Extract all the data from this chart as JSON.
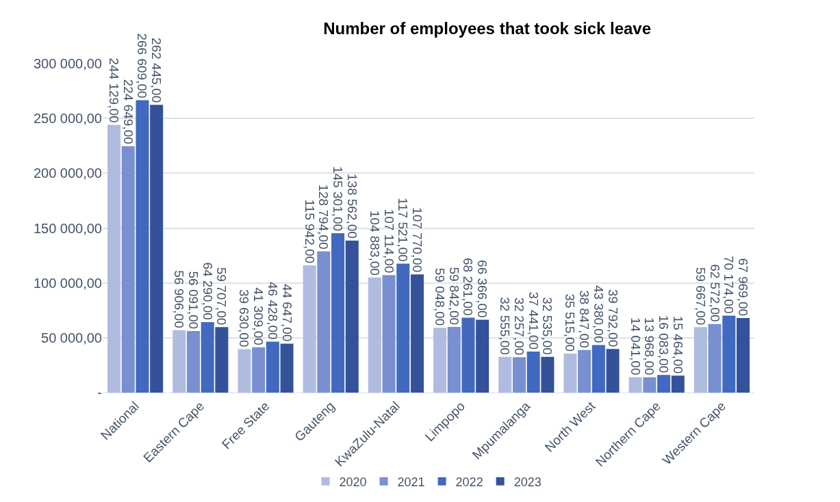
{
  "chart_data": {
    "type": "bar",
    "title": "Number of employees that took sick leave",
    "categories": [
      "National",
      "Eastern Cape",
      "Free State",
      "Gauteng",
      "KwaZulu-Natal",
      "Limpopo",
      "Mpumalanga",
      "North West",
      "Northern Cape",
      "Western Cape"
    ],
    "series": [
      {
        "name": "2020",
        "color": "#b0bbe0",
        "values": [
          244129,
          56906,
          39630,
          115942,
          104883,
          59048,
          32555,
          35515,
          14041,
          59667
        ],
        "value_labels": [
          "244 129,00",
          "56 906,00",
          "39 630,00",
          "115 942,00",
          "104 883,00",
          "59 048,00",
          "32 555,00",
          "35 515,00",
          "14 041,00",
          "59 667,00"
        ]
      },
      {
        "name": "2021",
        "color": "#7890d0",
        "values": [
          224649,
          56091,
          41309,
          128794,
          107114,
          59842,
          32257,
          38847,
          13968,
          62572
        ],
        "value_labels": [
          "224 649,00",
          "56 091,00",
          "41 309,00",
          "128 794,00",
          "107 114,00",
          "59 842,00",
          "32 257,00",
          "38 847,00",
          "13 968,00",
          "62 572,00"
        ]
      },
      {
        "name": "2022",
        "color": "#4169c0",
        "values": [
          266609,
          64290,
          46428,
          145301,
          117521,
          68261,
          37441,
          43380,
          16083,
          70174
        ],
        "value_labels": [
          "266 609,00",
          "64 290,00",
          "46 428,00",
          "145 301,00",
          "117 521,00",
          "68 261,00",
          "37 441,00",
          "43 380,00",
          "16 083,00",
          "70 174,00"
        ]
      },
      {
        "name": "2023",
        "color": "#34529a",
        "values": [
          262445,
          59707,
          44647,
          138562,
          107770,
          66366,
          32535,
          39792,
          15464,
          67969
        ],
        "value_labels": [
          "262 445,00",
          "59 707,00",
          "44 647,00",
          "138 562,00",
          "107 770,00",
          "66 366,00",
          "32 535,00",
          "39 792,00",
          "15 464,00",
          "67 969,00"
        ]
      }
    ],
    "ylim": [
      0,
      300000
    ],
    "yticks": [
      {
        "value": 0,
        "label": "-"
      },
      {
        "value": 50000,
        "label": "50 000,00"
      },
      {
        "value": 100000,
        "label": "100 000,00"
      },
      {
        "value": 150000,
        "label": "150 000,00"
      },
      {
        "value": 200000,
        "label": "200 000,00"
      },
      {
        "value": 250000,
        "label": "250 000,00"
      },
      {
        "value": 300000,
        "label": "300 000,00"
      }
    ],
    "grid": "y",
    "legend": "bottom"
  }
}
